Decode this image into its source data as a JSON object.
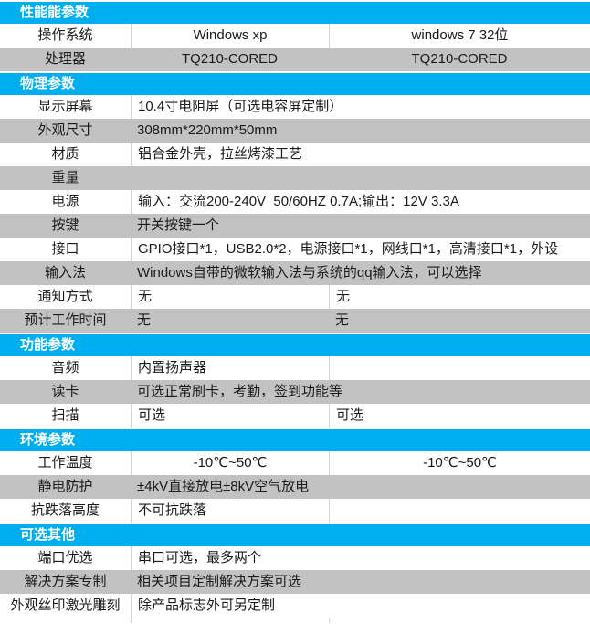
{
  "table": {
    "colors": {
      "header_bg": "#00AEEF",
      "header_text": "#FFFFFF",
      "shaded_row_bg": "#C2C2C2",
      "row_bg": "#FFFFFF",
      "separator": "#D3D3D3",
      "text": "#1A1A1A"
    },
    "sections": [
      {
        "title": "性能能参数",
        "rows": [
          {
            "label": "操作系统",
            "cells": [
              "Windows xp",
              "windows 7 32位"
            ],
            "align": "center"
          },
          {
            "label": "处理器",
            "cells": [
              "TQ210-CORED",
              "TQ210-CORED"
            ],
            "align": "center"
          }
        ]
      },
      {
        "title": "物理参数",
        "rows": [
          {
            "label": "显示屏幕",
            "cells": [
              "10.4寸电阻屏（可选电容屏定制）"
            ],
            "align": "left"
          },
          {
            "label": "外观尺寸",
            "cells": [
              "308mm*220mm*50mm"
            ],
            "align": "left"
          },
          {
            "label": "材质",
            "cells": [
              "铝合金外壳，拉丝烤漆工艺"
            ],
            "align": "left"
          },
          {
            "label": "重量",
            "cells": [
              ""
            ],
            "align": "left"
          },
          {
            "label": "电源",
            "cells": [
              "输入：交流200-240V  50/60HZ 0.7A;输出：12V 3.3A"
            ],
            "align": "left"
          },
          {
            "label": "按键",
            "cells": [
              "开关按键一个"
            ],
            "align": "left"
          },
          {
            "label": "接口",
            "cells": [
              "GPIO接口*1，USB2.0*2，电源接口*1，网线口*1，高清接口*1，外设"
            ],
            "align": "left"
          },
          {
            "label": "输入法",
            "cells": [
              "Windows自带的微软输入法与系统的qq输入法，可以选择"
            ],
            "align": "left"
          },
          {
            "label": "通知方式",
            "cells": [
              "无",
              "无"
            ],
            "align": "left"
          },
          {
            "label": "预计工作时间",
            "cells": [
              "无",
              "无"
            ],
            "align": "left"
          }
        ]
      },
      {
        "title": "功能参数",
        "rows": [
          {
            "label": "音频",
            "cells": [
              "内置扬声器",
              ""
            ],
            "align": "left"
          },
          {
            "label": "读卡",
            "cells": [
              "可选正常刷卡，考勤，签到功能等"
            ],
            "align": "left"
          },
          {
            "label": "扫描",
            "cells": [
              "可选",
              "可选"
            ],
            "align": "left"
          }
        ]
      },
      {
        "title": "环境参数",
        "rows": [
          {
            "label": "工作温度",
            "cells": [
              "-10℃~50℃",
              "-10℃~50℃"
            ],
            "align": "center"
          },
          {
            "label": "静电防护",
            "cells": [
              "±4kV直接放电±8kV空气放电"
            ],
            "align": "left"
          },
          {
            "label": "抗跌落高度",
            "cells": [
              "不可抗跌落",
              ""
            ],
            "align": "left"
          }
        ]
      },
      {
        "title": "可选其他",
        "rows": [
          {
            "label": "端口优选",
            "cells": [
              "串口可选，最多两个"
            ],
            "align": "left"
          },
          {
            "label": "解决方案专制",
            "cells": [
              "相关项目定制解决方案可选"
            ],
            "align": "left"
          },
          {
            "label": "外观丝印激光雕刻",
            "cells": [
              "除产品标志外可另定制"
            ],
            "align": "left"
          }
        ]
      }
    ],
    "footer_row": {
      "cells": [
        "",
        ""
      ]
    }
  }
}
